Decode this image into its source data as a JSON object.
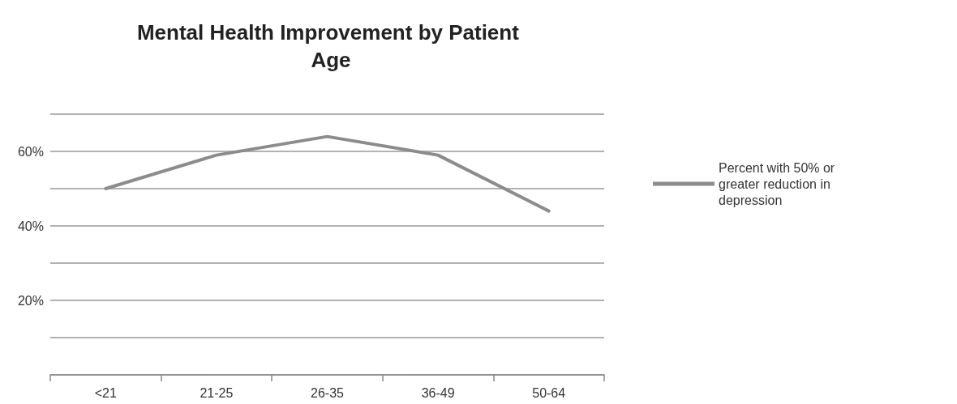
{
  "chart_data": {
    "type": "line",
    "title": "Mental Health Improvement by Patient Age",
    "categories": [
      "<21",
      "21-25",
      "26-35",
      "36-49",
      "50-64"
    ],
    "series": [
      {
        "name": "Percent with 50% or greater reduction in depression",
        "color": "#8c8c8c",
        "values": [
          50,
          59,
          64,
          59,
          44
        ]
      }
    ],
    "ylim": [
      0,
      70
    ],
    "yticks": [
      {
        "value": 0,
        "label": null
      },
      {
        "value": 10,
        "label": null
      },
      {
        "value": 20,
        "label": "20%"
      },
      {
        "value": 30,
        "label": null
      },
      {
        "value": 40,
        "label": "40%"
      },
      {
        "value": 50,
        "label": null
      },
      {
        "value": 60,
        "label": "60%"
      },
      {
        "value": 70,
        "label": null
      }
    ],
    "grid": "y",
    "legend": "right",
    "marker": "none",
    "line_style": "solid"
  }
}
